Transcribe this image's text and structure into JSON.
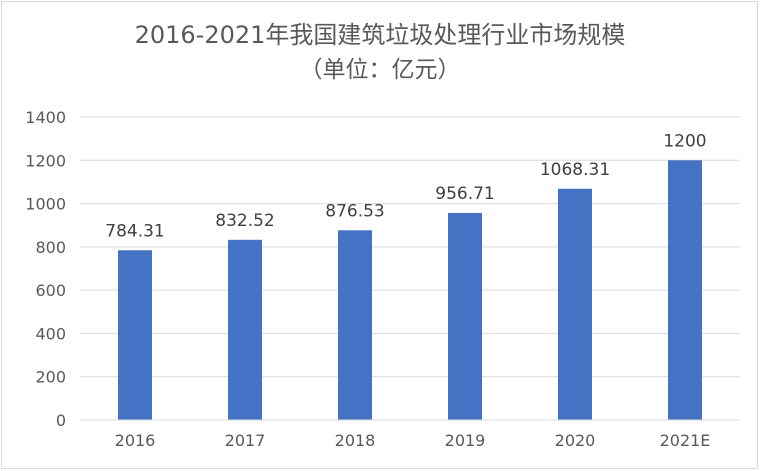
{
  "chart_data": {
    "type": "bar",
    "title": "2016-2021年我国建筑垃圾处理行业市场规模",
    "subtitle": "（单位：亿元）",
    "categories": [
      "2016",
      "2017",
      "2018",
      "2019",
      "2020",
      "2021E"
    ],
    "values": [
      784.31,
      832.52,
      876.53,
      956.71,
      1068.31,
      1200
    ],
    "data_labels": [
      "784.31",
      "832.52",
      "876.53",
      "956.71",
      "1068.31",
      "1200"
    ],
    "ylim": [
      0,
      1400
    ],
    "yticks": [
      0,
      200,
      400,
      600,
      800,
      1000,
      1200,
      1400
    ],
    "grid": true,
    "legend": "none",
    "colors": {
      "bar": "#4472c4",
      "grid": "#d9d9d9",
      "text": "#595959"
    }
  }
}
